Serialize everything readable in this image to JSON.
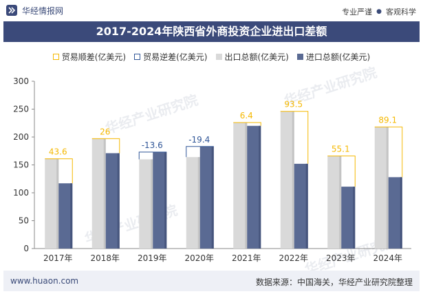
{
  "header": {
    "logo_text": "华经情报网",
    "right_items": [
      "专业严谨",
      "客观科学"
    ]
  },
  "title": "2017-2024年陕西省外商投资企业进出口差额",
  "watermark": "华经产业研究院",
  "footer": {
    "url": "www.huaon.com",
    "source": "数据来源：中国海关，华经产业研究院整理"
  },
  "chart_data": {
    "type": "bar",
    "categories": [
      "2017年",
      "2018年",
      "2019年",
      "2020年",
      "2021年",
      "2022年",
      "2023年",
      "2024年"
    ],
    "series": [
      {
        "name": "贸易顺差(亿美元)",
        "values": [
          43.6,
          26,
          null,
          null,
          6.4,
          93.5,
          55.1,
          89.1
        ],
        "color": "#f5b800",
        "style": "bracket"
      },
      {
        "name": "贸易逆差(亿美元)",
        "values": [
          null,
          null,
          -13.6,
          -19.4,
          null,
          null,
          null,
          null
        ],
        "color": "#2f5597",
        "style": "bracket"
      },
      {
        "name": "出口总额(亿美元)",
        "values": [
          161,
          197,
          160,
          164,
          226,
          246,
          166,
          218
        ],
        "color": "#d9d9d9"
      },
      {
        "name": "进口总额(亿美元)",
        "values": [
          117,
          171,
          173,
          183,
          220,
          152,
          111,
          128
        ],
        "color": "#5a6a93"
      }
    ],
    "ylim": [
      0,
      300
    ],
    "yticks": [
      0,
      50,
      100,
      150,
      200,
      250,
      300
    ],
    "grid": false,
    "legend_position": "top"
  }
}
